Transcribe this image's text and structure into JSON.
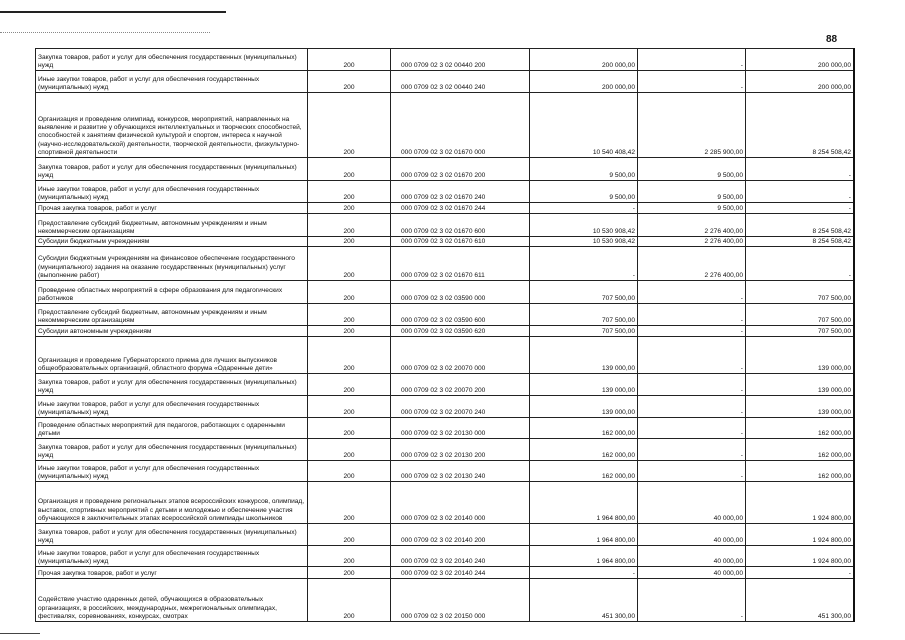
{
  "page_number": "88",
  "rows": [
    {
      "desc": "Закупка товаров, работ и услуг для обеспечения государственных (муниципальных) нужд",
      "col2": "200",
      "code": "000 0709 02 3 02 00440 200",
      "v1": "200 000,00",
      "v2": "-",
      "v3": "200 000,00"
    },
    {
      "desc": "Иные закупки товаров, работ и услуг для обеспечения государственных (муниципальных) нужд",
      "col2": "200",
      "code": "000 0709 02 3 02 00440 240",
      "v1": "200 000,00",
      "v2": "-",
      "v3": "200 000,00"
    },
    {
      "desc": "Организация и проведение олимпиад, конкурсов, мероприятий, направленных на выявление и развитие у обучающихся интеллектуальных и творческих способностей, способностей к занятиям физической культурой и спортом, интереса к научной (научно-исследовательской) деятельности, творческой деятельности, физкультурно-спортивной деятельности",
      "col2": "200",
      "code": "000 0709 02 3 02 01670 000",
      "v1": "10 540 408,42",
      "v2": "2 285 900,00",
      "v3": "8 254 508,42"
    },
    {
      "desc": "Закупка товаров, работ и услуг для обеспечения государственных (муниципальных) нужд",
      "col2": "200",
      "code": "000 0709 02 3 02 01670 200",
      "v1": "9 500,00",
      "v2": "9 500,00",
      "v3": "-"
    },
    {
      "desc": "Иные закупки товаров, работ и услуг для обеспечения государственных (муниципальных) нужд",
      "col2": "200",
      "code": "000 0709 02 3 02 01670 240",
      "v1": "9 500,00",
      "v2": "9 500,00",
      "v3": "-"
    },
    {
      "desc": "Прочая закупка товаров, работ и услуг",
      "col2": "200",
      "code": "000 0709 02 3 02 01670 244",
      "v1": "-",
      "v2": "9 500,00",
      "v3": "-"
    },
    {
      "desc": "Предоставление субсидий бюджетным, автономным учреждениям и иным некоммерческим организациям",
      "col2": "200",
      "code": "000 0709 02 3 02 01670 600",
      "v1": "10 530 908,42",
      "v2": "2 276 400,00",
      "v3": "8 254 508,42"
    },
    {
      "desc": "Субсидии бюджетным учреждениям",
      "col2": "200",
      "code": "000 0709 02 3 02 01670 610",
      "v1": "10 530 908,42",
      "v2": "2 276 400,00",
      "v3": "8 254 508,42"
    },
    {
      "desc": "Субсидии бюджетным учреждениям на финансовое обеспечение государственного (муниципального) задания на оказание государственных (муниципальных) услуг (выполнение работ)",
      "col2": "200",
      "code": "000 0709 02 3 02 01670 611",
      "v1": "-",
      "v2": "2 276 400,00",
      "v3": "-"
    },
    {
      "desc": "Проведение областных мероприятий в сфере образования для педагогических работников",
      "col2": "200",
      "code": "000 0709 02 3 02 03590 000",
      "v1": "707 500,00",
      "v2": "-",
      "v3": "707 500,00"
    },
    {
      "desc": "Предоставление субсидий бюджетным, автономным учреждениям и иным некоммерческим организациям",
      "col2": "200",
      "code": "000 0709 02 3 02 03590 600",
      "v1": "707 500,00",
      "v2": "-",
      "v3": "707 500,00"
    },
    {
      "desc": "Субсидии автономным учреждениям",
      "col2": "200",
      "code": "000 0709 02 3 02 03590 620",
      "v1": "707 500,00",
      "v2": "-",
      "v3": "707 500,00"
    },
    {
      "desc": "Организация и проведение Губернаторского приема для лучших выпускников общеобразовательных организаций, областного форума «Одаренные дети»",
      "col2": "200",
      "code": "000 0709 02 3 02 20070 000",
      "v1": "139 000,00",
      "v2": "-",
      "v3": "139 000,00"
    },
    {
      "desc": "Закупка товаров, работ и услуг для обеспечения государственных (муниципальных) нужд",
      "col2": "200",
      "code": "000 0709 02 3 02 20070 200",
      "v1": "139 000,00",
      "v2": "-",
      "v3": "139 000,00"
    },
    {
      "desc": "Иные закупки товаров, работ и услуг для обеспечения государственных (муниципальных) нужд",
      "col2": "200",
      "code": "000 0709 02 3 02 20070 240",
      "v1": "139 000,00",
      "v2": "-",
      "v3": "139 000,00"
    },
    {
      "desc": "Проведение областных мероприятий для педагогов, работающих с одаренными детьми",
      "col2": "200",
      "code": "000 0709 02 3 02 20130 000",
      "v1": "162 000,00",
      "v2": "-",
      "v3": "162 000,00"
    },
    {
      "desc": "Закупка товаров, работ и услуг для обеспечения государственных (муниципальных) нужд",
      "col2": "200",
      "code": "000 0709 02 3 02 20130 200",
      "v1": "162 000,00",
      "v2": "-",
      "v3": "162 000,00"
    },
    {
      "desc": "Иные закупки товаров, работ и услуг для обеспечения государственных (муниципальных) нужд",
      "col2": "200",
      "code": "000 0709 02 3 02 20130 240",
      "v1": "162 000,00",
      "v2": "-",
      "v3": "162 000,00"
    },
    {
      "desc": "Организация и проведение региональных этапов всероссийских конкурсов, олимпиад, выставок, спортивных мероприятий с детьми и молодежью и обеспечение участия обучающихся в заключительных этапах всероссийской олимпиады школьников",
      "col2": "200",
      "code": "000 0709 02 3 02 20140 000",
      "v1": "1 964 800,00",
      "v2": "40 000,00",
      "v3": "1 924 800,00"
    },
    {
      "desc": "Закупка товаров, работ и услуг для обеспечения государственных (муниципальных) нужд",
      "col2": "200",
      "code": "000 0709 02 3 02 20140 200",
      "v1": "1 964 800,00",
      "v2": "40 000,00",
      "v3": "1 924 800,00"
    },
    {
      "desc": "Иные закупки товаров, работ и услуг для обеспечения государственных (муниципальных) нужд",
      "col2": "200",
      "code": "000 0709 02 3 02 20140 240",
      "v1": "1 964 800,00",
      "v2": "40 000,00",
      "v3": "1 924 800,00"
    },
    {
      "desc": "Прочая закупка товаров, работ и услуг",
      "col2": "200",
      "code": "000 0709 02 3 02 20140 244",
      "v1": "-",
      "v2": "40 000,00",
      "v3": "-"
    },
    {
      "desc": "Содействие участию одаренных детей, обучающихся в образовательных организациях, в российских, международных, межрегиональных олимпиадах, фестивалях, соревнованиях, конкурсах, смотрах",
      "col2": "200",
      "code": "000 0709 02 3 02 20150 000",
      "v1": "451 300,00",
      "v2": "-",
      "v3": "451 300,00"
    }
  ]
}
